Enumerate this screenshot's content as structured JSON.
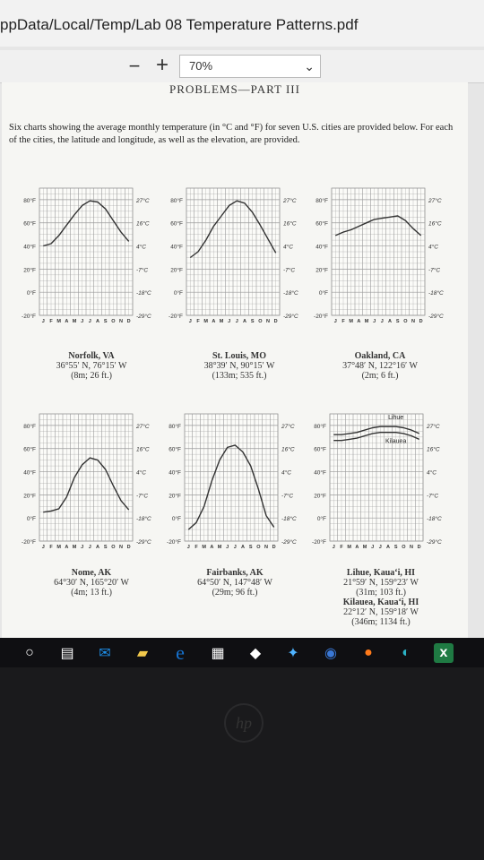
{
  "window": {
    "title": "ppData/Local/Temp/Lab 08 Temperature Patterns.pdf"
  },
  "toolbar": {
    "zoom_out": "−",
    "zoom_in": "+",
    "zoom_value": "70%"
  },
  "document": {
    "section_heading": "PROBLEMS—PART III",
    "intro": "Six charts showing the average monthly temperature (in °C and °F) for seven U.S. cities are provided below. For each of the cities, the latitude and longitude, as well as the elevation, are provided."
  },
  "axis_labels": {
    "f_ticks": [
      "80°F",
      "60°F",
      "40°F",
      "20°F",
      "0°F",
      "-20°F"
    ],
    "c_ticks": [
      "27°C",
      "16°C",
      "4°C",
      "-7°C",
      "-18°C",
      "-29°C"
    ],
    "months": [
      "J",
      "F",
      "M",
      "A",
      "M",
      "J",
      "J",
      "A",
      "S",
      "O",
      "N",
      "D"
    ]
  },
  "charts": [
    {
      "caption": {
        "name": "Norfolk, VA",
        "coords": "36°55′ N, 76°15′ W",
        "elev": "(8m; 26 ft.)"
      },
      "chart_data": {
        "type": "line",
        "x": [
          "J",
          "F",
          "M",
          "A",
          "M",
          "J",
          "J",
          "A",
          "S",
          "O",
          "N",
          "D"
        ],
        "series": [
          {
            "values": [
              40,
              42,
              49,
              58,
              67,
              75,
              79,
              78,
              72,
              62,
              52,
              44
            ]
          }
        ],
        "ylim": [
          -20,
          90
        ]
      }
    },
    {
      "caption": {
        "name": "St. Louis, MO",
        "coords": "38°39′ N, 90°15′ W",
        "elev": "(133m; 535 ft.)"
      },
      "chart_data": {
        "type": "line",
        "x": [
          "J",
          "F",
          "M",
          "A",
          "M",
          "J",
          "J",
          "A",
          "S",
          "O",
          "N",
          "D"
        ],
        "series": [
          {
            "values": [
              30,
              35,
              45,
              57,
              66,
              75,
              79,
              77,
              69,
              58,
              46,
              34
            ]
          }
        ],
        "ylim": [
          -20,
          90
        ]
      }
    },
    {
      "caption": {
        "name": "Oakland, CA",
        "coords": "37°48′ N, 122°16′ W",
        "elev": "(2m; 6 ft.)"
      },
      "chart_data": {
        "type": "line",
        "x": [
          "J",
          "F",
          "M",
          "A",
          "M",
          "J",
          "J",
          "A",
          "S",
          "O",
          "N",
          "D"
        ],
        "series": [
          {
            "values": [
              49,
              52,
              54,
              57,
              60,
              63,
              64,
              65,
              66,
              62,
              55,
              49
            ]
          }
        ],
        "ylim": [
          -20,
          90
        ]
      }
    },
    {
      "caption": {
        "name": "Nome, AK",
        "coords": "64°30′ N, 165°20′ W",
        "elev": "(4m; 13 ft.)"
      },
      "chart_data": {
        "type": "line",
        "x": [
          "J",
          "F",
          "M",
          "A",
          "M",
          "J",
          "J",
          "A",
          "S",
          "O",
          "N",
          "D"
        ],
        "series": [
          {
            "values": [
              5,
              6,
              8,
              18,
              35,
              46,
              52,
              50,
              42,
              28,
              15,
              7
            ]
          }
        ],
        "ylim": [
          -20,
          90
        ]
      }
    },
    {
      "caption": {
        "name": "Fairbanks, AK",
        "coords": "64°50′ N, 147°48′ W",
        "elev": "(29m; 96 ft.)"
      },
      "chart_data": {
        "type": "line",
        "x": [
          "J",
          "F",
          "M",
          "A",
          "M",
          "J",
          "J",
          "A",
          "S",
          "O",
          "N",
          "D"
        ],
        "series": [
          {
            "values": [
              -10,
              -4,
              10,
              32,
              50,
              61,
              63,
              57,
              45,
              25,
              2,
              -8
            ]
          }
        ],
        "ylim": [
          -20,
          90
        ]
      }
    },
    {
      "caption": {
        "name": "Lihue, Kaua‘i, HI",
        "coords": "21°59′ N, 159°23′ W",
        "elev": "(31m; 103 ft.)",
        "name2": "Kilauea, Kaua‘i, HI",
        "coords2": "22°12′ N, 159°18′ W",
        "elev2": "(346m; 1134 ft.)"
      },
      "labels": {
        "upper": "Lihue",
        "lower": "Kilauea"
      },
      "chart_data": {
        "type": "line",
        "x": [
          "J",
          "F",
          "M",
          "A",
          "M",
          "J",
          "J",
          "A",
          "S",
          "O",
          "N",
          "D"
        ],
        "series": [
          {
            "name": "Lihue",
            "values": [
              72,
              72,
              73,
              74,
              76,
              78,
              79,
              79,
              79,
              78,
              76,
              73
            ]
          },
          {
            "name": "Kilauea",
            "values": [
              67,
              67,
              68,
              69,
              71,
              73,
              74,
              74,
              74,
              73,
              71,
              68
            ]
          }
        ],
        "ylim": [
          -20,
          90
        ]
      }
    }
  ],
  "taskbar": {
    "icons": [
      "cortana-icon",
      "task-view-icon",
      "mail-icon",
      "file-explorer-icon",
      "edge-icon",
      "store-icon",
      "dropbox-icon",
      "app-icon",
      "chrome-icon",
      "firefox-icon",
      "edge-new-icon",
      "excel-icon"
    ]
  },
  "colors": {
    "screen_bg": "#e6e6e6",
    "page_bg": "#f6f6f3",
    "grid": "#9a9a9a",
    "line": "#333333",
    "taskbar": "#0f0f12",
    "mail_blue": "#1e8ee8",
    "edge_blue": "#1673d1",
    "excel_green": "#1f7a43"
  }
}
